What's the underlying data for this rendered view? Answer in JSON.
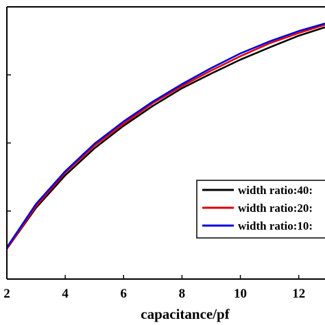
{
  "chart_data": {
    "type": "line",
    "xlabel": "capacitance/pf",
    "ylabel": "",
    "xlim": [
      2,
      12.9
    ],
    "ylim": [
      0,
      1
    ],
    "x_ticks": [
      2,
      4,
      6,
      8,
      10,
      12
    ],
    "y_ticks": [
      0,
      0.25,
      0.5,
      0.75,
      1.0
    ],
    "y_tick_labels_visible": false,
    "grid": false,
    "legend_position": "bottom-right",
    "series": [
      {
        "name": "width ratio:40:",
        "color": "#000000",
        "x": [
          2,
          3,
          4,
          5,
          6,
          7,
          8,
          9,
          10,
          11,
          12,
          12.9
        ],
        "y": [
          0.111,
          0.262,
          0.381,
          0.48,
          0.563,
          0.636,
          0.701,
          0.755,
          0.806,
          0.851,
          0.894,
          0.925
        ]
      },
      {
        "name": "width ratio:20:",
        "color": "#e00000",
        "x": [
          2,
          3,
          4,
          5,
          6,
          7,
          8,
          9,
          10,
          11,
          12,
          12.9
        ],
        "y": [
          0.111,
          0.268,
          0.391,
          0.49,
          0.571,
          0.646,
          0.709,
          0.766,
          0.819,
          0.866,
          0.904,
          0.934
        ]
      },
      {
        "name": "width ratio:10:",
        "color": "#0000e0",
        "x": [
          2,
          3,
          4,
          5,
          6,
          7,
          8,
          9,
          10,
          11,
          12,
          12.9
        ],
        "y": [
          0.116,
          0.276,
          0.396,
          0.497,
          0.579,
          0.652,
          0.716,
          0.775,
          0.829,
          0.873,
          0.911,
          0.939
        ]
      }
    ]
  }
}
